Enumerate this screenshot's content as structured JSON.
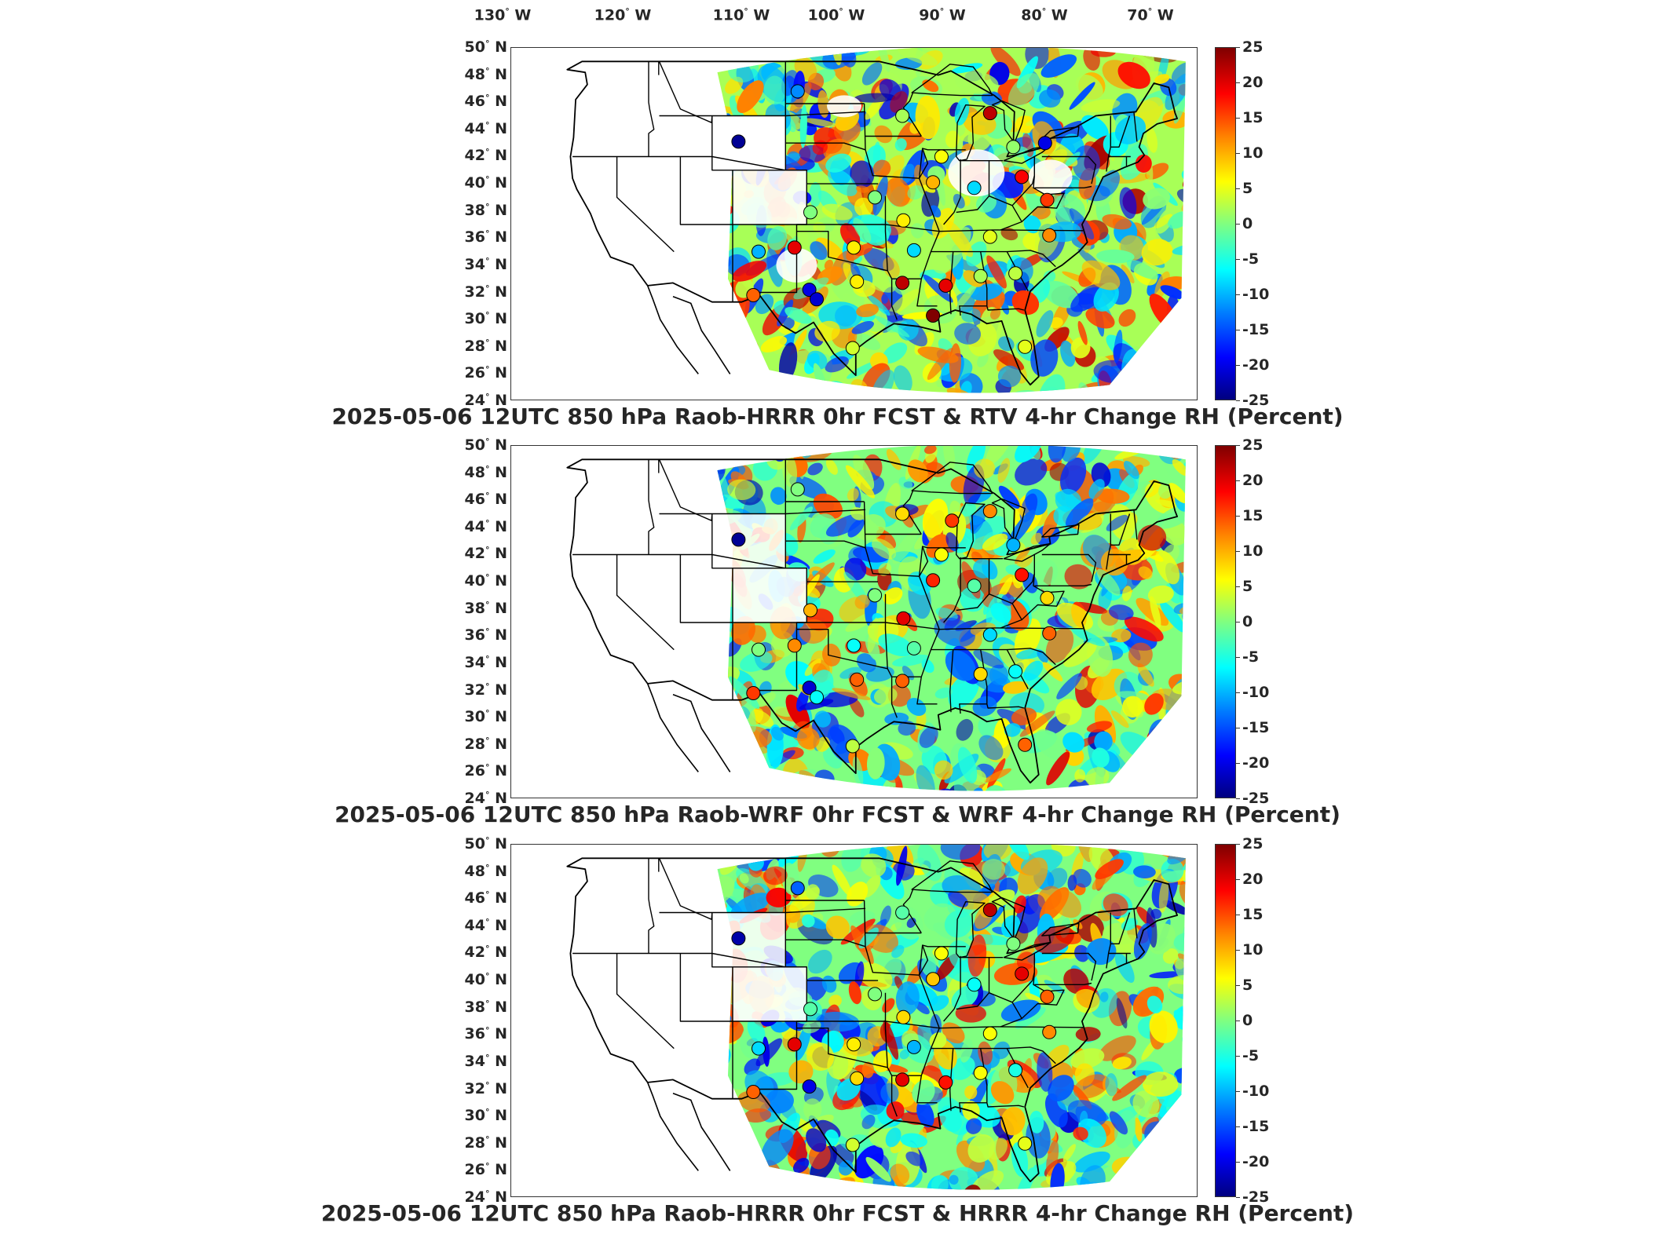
{
  "map": {
    "lon_labels": [
      {
        "deg": "130",
        "hem": "W"
      },
      {
        "deg": "120",
        "hem": "W"
      },
      {
        "deg": "110",
        "hem": "W"
      },
      {
        "deg": "100",
        "hem": "W"
      },
      {
        "deg": "90",
        "hem": "W"
      },
      {
        "deg": "80",
        "hem": "W"
      },
      {
        "deg": "70",
        "hem": "W"
      }
    ],
    "lat_labels": [
      {
        "deg": "50",
        "hem": "N"
      },
      {
        "deg": "48",
        "hem": "N"
      },
      {
        "deg": "46",
        "hem": "N"
      },
      {
        "deg": "44",
        "hem": "N"
      },
      {
        "deg": "42",
        "hem": "N"
      },
      {
        "deg": "40",
        "hem": "N"
      },
      {
        "deg": "38",
        "hem": "N"
      },
      {
        "deg": "36",
        "hem": "N"
      },
      {
        "deg": "34",
        "hem": "N"
      },
      {
        "deg": "32",
        "hem": "N"
      },
      {
        "deg": "30",
        "hem": "N"
      },
      {
        "deg": "28",
        "hem": "N"
      },
      {
        "deg": "26",
        "hem": "N"
      },
      {
        "deg": "24",
        "hem": "N"
      }
    ],
    "lon_range": [
      -130,
      -65
    ],
    "lat_range": [
      24,
      50
    ],
    "colorbar": {
      "ticks": [
        "25",
        "20",
        "15",
        "10",
        "5",
        "0",
        "-5",
        "-10",
        "-15",
        "-20",
        "-25"
      ],
      "range": [
        -25,
        25
      ],
      "colormap": "jet"
    }
  },
  "panels": [
    {
      "title": "2025-05-06 12UTC 850 hPa Raob-HRRR 0hr FCST & RTV 4-hr Change RH (Percent)",
      "stations": [
        {
          "lon": -102.9,
          "lat": 46.8,
          "v": -12
        },
        {
          "lon": -108.5,
          "lat": 43.1,
          "v": -24
        },
        {
          "lon": -93.0,
          "lat": 45.0,
          "v": 2
        },
        {
          "lon": -84.7,
          "lat": 45.2,
          "v": 22
        },
        {
          "lon": -89.3,
          "lat": 42.0,
          "v": 6
        },
        {
          "lon": -82.5,
          "lat": 42.7,
          "v": 1
        },
        {
          "lon": -79.5,
          "lat": 43.0,
          "v": -20
        },
        {
          "lon": -90.1,
          "lat": 40.1,
          "v": 10
        },
        {
          "lon": -81.7,
          "lat": 40.5,
          "v": 19
        },
        {
          "lon": -86.2,
          "lat": 39.7,
          "v": -8
        },
        {
          "lon": -79.3,
          "lat": 38.8,
          "v": 16
        },
        {
          "lon": -95.6,
          "lat": 39.0,
          "v": 0
        },
        {
          "lon": -101.7,
          "lat": 37.9,
          "v": 0
        },
        {
          "lon": -92.9,
          "lat": 37.3,
          "v": 7
        },
        {
          "lon": -91.9,
          "lat": 35.1,
          "v": -8
        },
        {
          "lon": -84.7,
          "lat": 36.1,
          "v": 5
        },
        {
          "lon": -79.1,
          "lat": 36.2,
          "v": 12
        },
        {
          "lon": -97.6,
          "lat": 35.3,
          "v": 7
        },
        {
          "lon": -103.2,
          "lat": 35.3,
          "v": 20
        },
        {
          "lon": -106.6,
          "lat": 35.0,
          "v": -10
        },
        {
          "lon": -97.3,
          "lat": 32.8,
          "v": 7
        },
        {
          "lon": -101.8,
          "lat": 32.2,
          "v": -20
        },
        {
          "lon": -93.0,
          "lat": 32.7,
          "v": 22
        },
        {
          "lon": -88.9,
          "lat": 32.5,
          "v": 20
        },
        {
          "lon": -85.6,
          "lat": 33.2,
          "v": 2
        },
        {
          "lon": -82.3,
          "lat": 33.4,
          "v": 3
        },
        {
          "lon": -90.1,
          "lat": 30.3,
          "v": 25
        },
        {
          "lon": -107.1,
          "lat": 31.8,
          "v": 14
        },
        {
          "lon": -101.1,
          "lat": 31.5,
          "v": -21
        },
        {
          "lon": -97.7,
          "lat": 27.9,
          "v": 4
        },
        {
          "lon": -81.4,
          "lat": 28.0,
          "v": 5
        }
      ]
    },
    {
      "title": "2025-05-06 12UTC 850 hPa Raob-WRF 0hr FCST & WRF 4-hr Change RH (Percent)",
      "stations": [
        {
          "lon": -102.9,
          "lat": 46.8,
          "v": 0
        },
        {
          "lon": -108.5,
          "lat": 43.1,
          "v": -24
        },
        {
          "lon": -93.0,
          "lat": 45.0,
          "v": 8
        },
        {
          "lon": -84.7,
          "lat": 45.2,
          "v": 12
        },
        {
          "lon": -88.3,
          "lat": 44.5,
          "v": 16
        },
        {
          "lon": -89.3,
          "lat": 42.0,
          "v": 6
        },
        {
          "lon": -82.5,
          "lat": 42.7,
          "v": -10
        },
        {
          "lon": -90.1,
          "lat": 40.1,
          "v": 17
        },
        {
          "lon": -81.7,
          "lat": 40.5,
          "v": 18
        },
        {
          "lon": -86.2,
          "lat": 39.7,
          "v": -2
        },
        {
          "lon": -79.3,
          "lat": 38.8,
          "v": 8
        },
        {
          "lon": -95.6,
          "lat": 39.0,
          "v": 0
        },
        {
          "lon": -101.7,
          "lat": 37.9,
          "v": 10
        },
        {
          "lon": -92.9,
          "lat": 37.3,
          "v": 20
        },
        {
          "lon": -91.9,
          "lat": 35.1,
          "v": -2
        },
        {
          "lon": -84.7,
          "lat": 36.1,
          "v": -8
        },
        {
          "lon": -79.1,
          "lat": 36.2,
          "v": 14
        },
        {
          "lon": -97.6,
          "lat": 35.3,
          "v": -6
        },
        {
          "lon": -103.2,
          "lat": 35.3,
          "v": 12
        },
        {
          "lon": -106.6,
          "lat": 35.0,
          "v": 0
        },
        {
          "lon": -97.3,
          "lat": 32.8,
          "v": 14
        },
        {
          "lon": -101.8,
          "lat": 32.2,
          "v": -21
        },
        {
          "lon": -93.0,
          "lat": 32.7,
          "v": 14
        },
        {
          "lon": -85.6,
          "lat": 33.2,
          "v": 8
        },
        {
          "lon": -82.3,
          "lat": 33.4,
          "v": -6
        },
        {
          "lon": -107.1,
          "lat": 31.8,
          "v": 16
        },
        {
          "lon": -101.1,
          "lat": 31.5,
          "v": -6
        },
        {
          "lon": -97.7,
          "lat": 27.9,
          "v": 3
        },
        {
          "lon": -81.4,
          "lat": 28.0,
          "v": 14
        }
      ]
    },
    {
      "title": "2025-05-06 12UTC 850 hPa Raob-HRRR 0hr FCST & HRRR 4-hr Change RH (Percent)",
      "stations": [
        {
          "lon": -102.9,
          "lat": 46.8,
          "v": -14
        },
        {
          "lon": -108.5,
          "lat": 43.1,
          "v": -23
        },
        {
          "lon": -93.0,
          "lat": 45.0,
          "v": -2
        },
        {
          "lon": -84.7,
          "lat": 45.2,
          "v": 22
        },
        {
          "lon": -89.3,
          "lat": 42.0,
          "v": 6
        },
        {
          "lon": -82.5,
          "lat": 42.7,
          "v": 0
        },
        {
          "lon": -90.1,
          "lat": 40.1,
          "v": 9
        },
        {
          "lon": -81.7,
          "lat": 40.5,
          "v": 20
        },
        {
          "lon": -86.2,
          "lat": 39.7,
          "v": -6
        },
        {
          "lon": -79.3,
          "lat": 38.8,
          "v": 14
        },
        {
          "lon": -95.6,
          "lat": 39.0,
          "v": 0
        },
        {
          "lon": -101.7,
          "lat": 37.9,
          "v": -2
        },
        {
          "lon": -92.9,
          "lat": 37.3,
          "v": 8
        },
        {
          "lon": -91.9,
          "lat": 35.1,
          "v": -10
        },
        {
          "lon": -84.7,
          "lat": 36.1,
          "v": 6
        },
        {
          "lon": -79.1,
          "lat": 36.2,
          "v": 12
        },
        {
          "lon": -97.6,
          "lat": 35.3,
          "v": 7
        },
        {
          "lon": -103.2,
          "lat": 35.3,
          "v": 20
        },
        {
          "lon": -106.6,
          "lat": 35.0,
          "v": -8
        },
        {
          "lon": -97.3,
          "lat": 32.8,
          "v": 8
        },
        {
          "lon": -101.8,
          "lat": 32.2,
          "v": -20
        },
        {
          "lon": -93.0,
          "lat": 32.7,
          "v": 20
        },
        {
          "lon": -88.9,
          "lat": 32.5,
          "v": 18
        },
        {
          "lon": -85.6,
          "lat": 33.2,
          "v": 6
        },
        {
          "lon": -82.3,
          "lat": 33.4,
          "v": -5
        },
        {
          "lon": -107.1,
          "lat": 31.8,
          "v": 14
        },
        {
          "lon": -97.7,
          "lat": 27.9,
          "v": 4
        },
        {
          "lon": -81.4,
          "lat": 28.0,
          "v": 5
        }
      ]
    }
  ]
}
